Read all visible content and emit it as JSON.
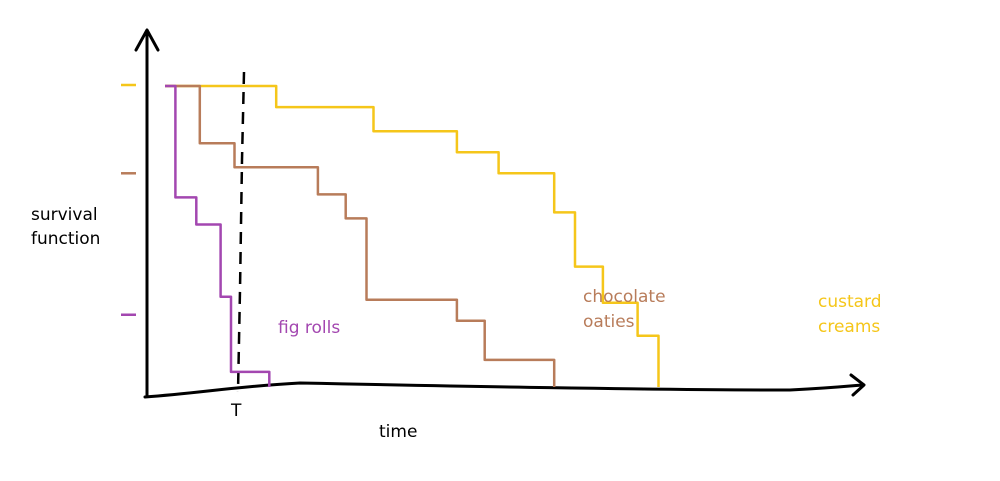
{
  "chart_data": {
    "type": "line",
    "subtype": "step",
    "xlabel": "time",
    "ylabel": "survival function",
    "marker": {
      "label": "T",
      "style": "dashed vertical line"
    },
    "series": [
      {
        "name": "custard creams",
        "color": "#f5c61a",
        "points": [
          [
            0.0,
            1.0
          ],
          [
            0.16,
            1.0
          ],
          [
            0.16,
            0.93
          ],
          [
            0.3,
            0.93
          ],
          [
            0.3,
            0.85
          ],
          [
            0.42,
            0.85
          ],
          [
            0.42,
            0.78
          ],
          [
            0.48,
            0.78
          ],
          [
            0.48,
            0.71
          ],
          [
            0.56,
            0.71
          ],
          [
            0.56,
            0.58
          ],
          [
            0.59,
            0.58
          ],
          [
            0.59,
            0.4
          ],
          [
            0.63,
            0.4
          ],
          [
            0.63,
            0.28
          ],
          [
            0.68,
            0.28
          ],
          [
            0.68,
            0.17
          ],
          [
            0.71,
            0.17
          ],
          [
            0.71,
            0.0
          ]
        ]
      },
      {
        "name": "chocolate oaties",
        "color": "#b87c5a",
        "points": [
          [
            0.0,
            1.0
          ],
          [
            0.05,
            1.0
          ],
          [
            0.05,
            0.81
          ],
          [
            0.1,
            0.81
          ],
          [
            0.1,
            0.73
          ],
          [
            0.22,
            0.73
          ],
          [
            0.22,
            0.64
          ],
          [
            0.26,
            0.64
          ],
          [
            0.26,
            0.56
          ],
          [
            0.29,
            0.56
          ],
          [
            0.29,
            0.29
          ],
          [
            0.42,
            0.29
          ],
          [
            0.42,
            0.22
          ],
          [
            0.46,
            0.22
          ],
          [
            0.46,
            0.09
          ],
          [
            0.56,
            0.09
          ],
          [
            0.56,
            0.0
          ]
        ]
      },
      {
        "name": "fig rolls",
        "color": "#a347b0",
        "points": [
          [
            0.0,
            1.0
          ],
          [
            0.015,
            1.0
          ],
          [
            0.015,
            0.63
          ],
          [
            0.045,
            0.63
          ],
          [
            0.045,
            0.54
          ],
          [
            0.08,
            0.54
          ],
          [
            0.08,
            0.3
          ],
          [
            0.095,
            0.3
          ],
          [
            0.095,
            0.05
          ],
          [
            0.15,
            0.05
          ],
          [
            0.15,
            0.0
          ]
        ]
      }
    ],
    "y_ticks_as_dashes": true,
    "grid": false,
    "legend": "labels next to curves"
  }
}
